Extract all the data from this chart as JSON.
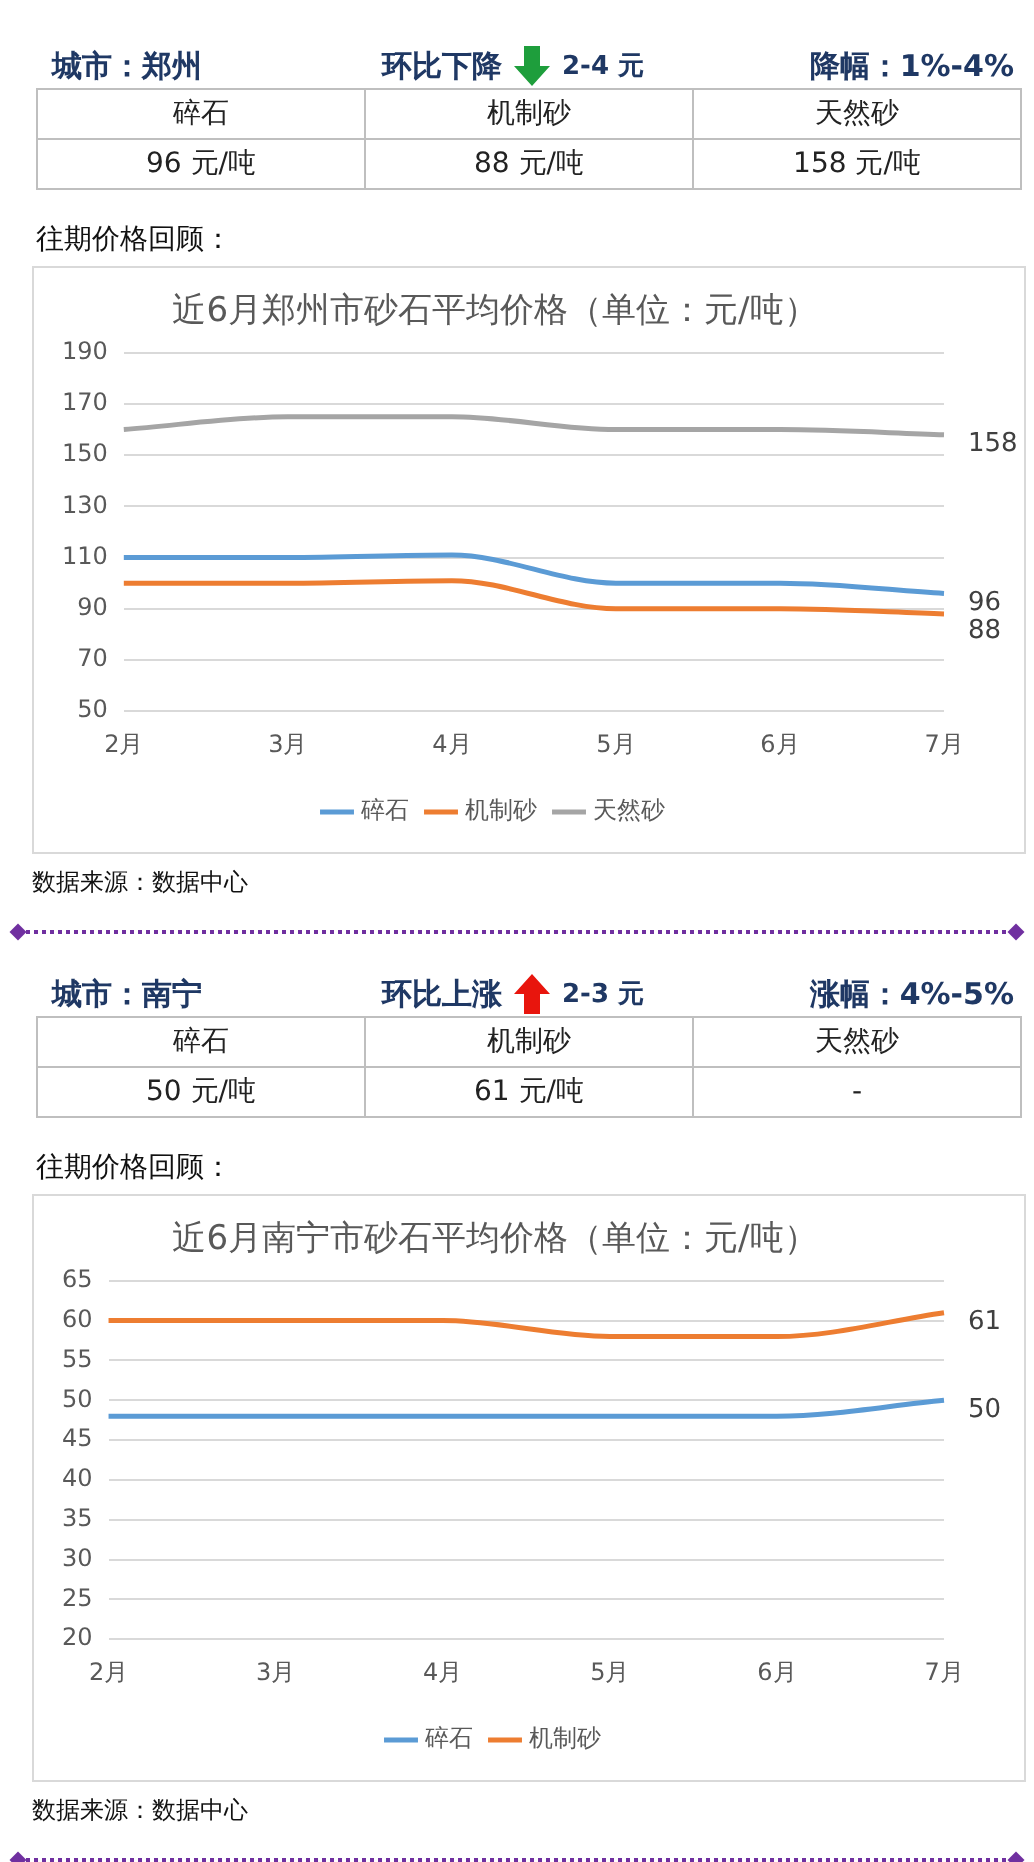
{
  "chart_data": [
    {
      "type": "other",
      "annotations": [
        "城市：郑州",
        "环比下降",
        "2-4 元",
        "降幅：1%-4%",
        "碎石",
        "机制砂",
        "天然砂",
        "96 元/吨",
        "88 元/吨",
        "158 元/吨",
        "往期价格回顾："
      ]
    },
    {
      "type": "line",
      "title": "近6月郑州市砂石平均价格（单位：元/吨）",
      "categories": [
        "2月",
        "3月",
        "4月",
        "5月",
        "6月",
        "7月"
      ],
      "series": [
        {
          "name": "碎石",
          "color": "#5b9bd5",
          "values": [
            110,
            110,
            111,
            100,
            100,
            96
          ],
          "value_labels": [
            null,
            null,
            null,
            null,
            null,
            "96"
          ]
        },
        {
          "name": "机制砂",
          "color": "#ed7d31",
          "values": [
            100,
            100,
            101,
            90,
            90,
            88
          ],
          "value_labels": [
            null,
            null,
            null,
            null,
            null,
            "88"
          ]
        },
        {
          "name": "天然砂",
          "color": "#a5a5a5",
          "values": [
            160,
            165,
            165,
            160,
            160,
            158
          ],
          "value_labels": [
            null,
            null,
            null,
            null,
            null,
            "158"
          ]
        }
      ],
      "ylim": [
        50,
        190
      ],
      "yticks": [
        50,
        70,
        90,
        110,
        130,
        150,
        170,
        190
      ],
      "grid": "y",
      "legend": "bottom",
      "marker": "none",
      "line_style": "solid",
      "annotations": [
        "数据来源：数据中心"
      ]
    },
    {
      "type": "other",
      "annotations": [
        "城市：南宁",
        "环比上涨",
        "2-3 元",
        "涨幅：4%-5%",
        "碎石",
        "机制砂",
        "天然砂",
        "50 元/吨",
        "61 元/吨",
        "-",
        "往期价格回顾："
      ]
    },
    {
      "type": "line",
      "title": "近6月南宁市砂石平均价格（单位：元/吨）",
      "categories": [
        "2月",
        "3月",
        "4月",
        "5月",
        "6月",
        "7月"
      ],
      "series": [
        {
          "name": "碎石",
          "color": "#5b9bd5",
          "values": [
            48,
            48,
            48,
            48,
            48,
            50
          ],
          "value_labels": [
            null,
            null,
            null,
            null,
            null,
            "50"
          ]
        },
        {
          "name": "机制砂",
          "color": "#ed7d31",
          "values": [
            60,
            60,
            60,
            58,
            58,
            61
          ],
          "value_labels": [
            null,
            null,
            null,
            null,
            null,
            "61"
          ]
        }
      ],
      "ylim": [
        20,
        65
      ],
      "yticks": [
        20,
        25,
        30,
        35,
        40,
        45,
        50,
        55,
        60,
        65
      ],
      "grid": "y",
      "legend": "bottom",
      "marker": "none",
      "line_style": "solid",
      "annotations": [
        "数据来源：数据中心"
      ]
    }
  ]
}
